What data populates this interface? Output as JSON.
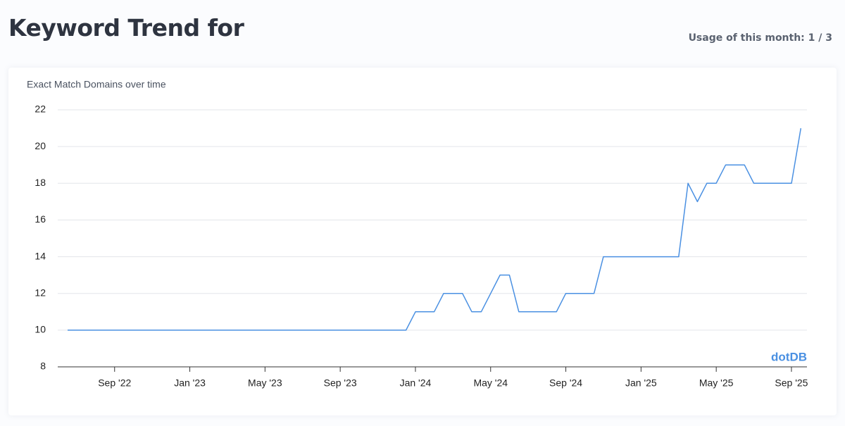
{
  "header": {
    "title": "Keyword Trend for",
    "usage": "Usage of this month: 1 / 3"
  },
  "watermark": "dotDB",
  "chart_data": {
    "type": "line",
    "title": "Exact Match Domains over time",
    "categories": [
      null,
      null,
      null,
      null,
      null,
      "Sep '22",
      null,
      null,
      null,
      null,
      null,
      null,
      null,
      "Jan '23",
      null,
      null,
      null,
      null,
      null,
      null,
      null,
      "May '23",
      null,
      null,
      null,
      null,
      null,
      null,
      null,
      "Sep '23",
      null,
      null,
      null,
      null,
      null,
      null,
      null,
      "Jan '24",
      null,
      null,
      null,
      null,
      null,
      null,
      null,
      "May '24",
      null,
      null,
      null,
      null,
      null,
      null,
      null,
      "Sep '24",
      null,
      null,
      null,
      null,
      null,
      null,
      null,
      "Jan '25",
      null,
      null,
      null,
      null,
      null,
      null,
      null,
      "May '25",
      null,
      null,
      null,
      null,
      null,
      null,
      null,
      "Sep '25",
      null
    ],
    "values": [
      10,
      10,
      10,
      10,
      10,
      10,
      10,
      10,
      10,
      10,
      10,
      10,
      10,
      10,
      10,
      10,
      10,
      10,
      10,
      10,
      10,
      10,
      10,
      10,
      10,
      10,
      10,
      10,
      10,
      10,
      10,
      10,
      10,
      10,
      10,
      10,
      10,
      11,
      11,
      11,
      12,
      12,
      12,
      11,
      11,
      12,
      13,
      13,
      11,
      11,
      11,
      11,
      11,
      12,
      12,
      12,
      12,
      14,
      14,
      14,
      14,
      14,
      14,
      14,
      14,
      14,
      18,
      17,
      18,
      18,
      19,
      19,
      19,
      18,
      18,
      18,
      18,
      18,
      21
    ],
    "color": "#4a90e2",
    "ylim": [
      8,
      22
    ],
    "yticks": [
      8,
      10,
      12,
      14,
      16,
      18,
      20,
      22
    ],
    "grid": true
  }
}
